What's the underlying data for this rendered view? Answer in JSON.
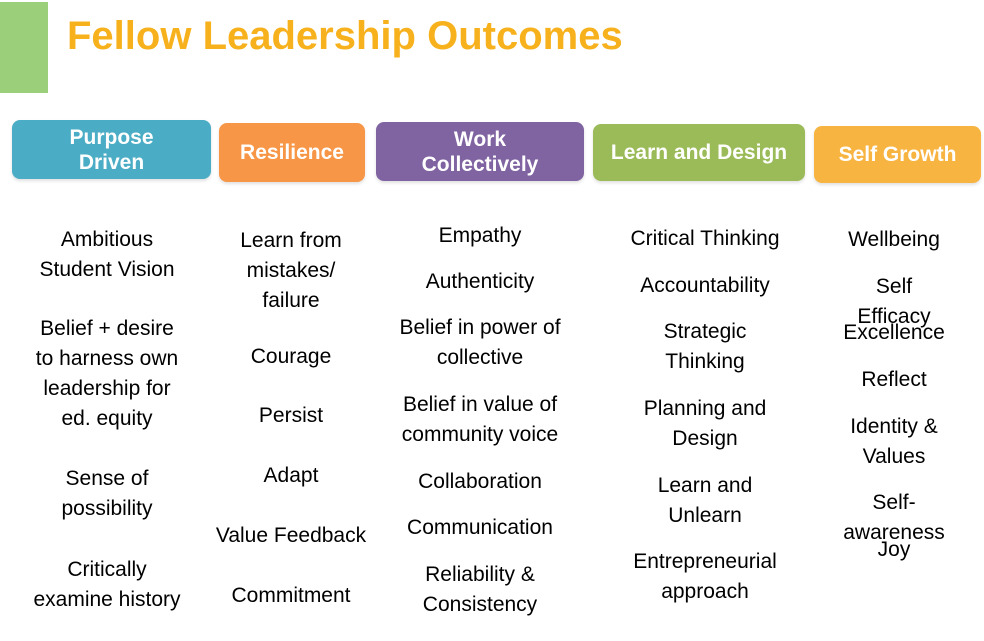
{
  "title": "Fellow Leadership Outcomes",
  "colors": {
    "accent_bar": "#9bcf7a",
    "title": "#f7b11d",
    "purpose_driven": "#4bacc6",
    "resilience": "#f79646",
    "work_collectively": "#8064a2",
    "learn_and_design": "#9bbb59",
    "self_growth": "#f7b441"
  },
  "columns": [
    {
      "header": "Purpose\nDriven",
      "items": [
        "Ambitious\nStudent Vision",
        "Belief + desire\nto harness own\nleadership for\ned. equity",
        "Sense of\npossibility",
        "Critically\nexamine history"
      ]
    },
    {
      "header": "Resilience",
      "items": [
        "Learn from\nmistakes/\nfailure",
        "Courage",
        "Persist",
        "Adapt",
        "Value Feedback",
        "Commitment"
      ]
    },
    {
      "header": "Work\nCollectively",
      "items": [
        "Empathy",
        "Authenticity",
        "Belief in power of\ncollective",
        "Belief in value of\ncommunity voice",
        "Collaboration",
        "Communication",
        "Reliability &\nConsistency"
      ]
    },
    {
      "header": "Learn and Design",
      "items": [
        "Critical Thinking",
        "Accountability",
        "Strategic\nThinking",
        "Planning and\nDesign",
        "Learn and\nUnlearn",
        "Entrepreneurial\napproach"
      ]
    },
    {
      "header": "Self Growth",
      "items": [
        "Wellbeing",
        "Self Efficacy",
        "Excellence",
        "Reflect",
        "Identity &\nValues",
        "Self-awareness",
        "Joy"
      ]
    }
  ]
}
